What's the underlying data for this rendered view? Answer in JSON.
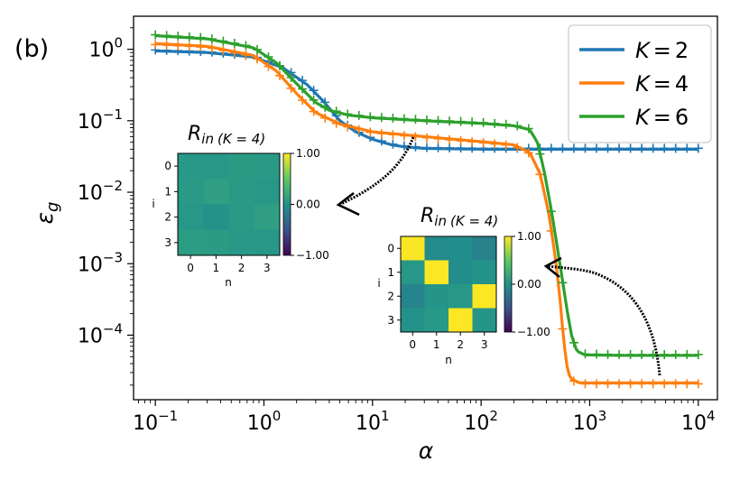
{
  "panel_label": "(b)",
  "chart_data": {
    "type": "line",
    "xscale": "log",
    "yscale": "log",
    "xlim": [
      0.063,
      15000
    ],
    "ylim": [
      1.25e-05,
      2.9
    ],
    "xlabel": "α",
    "ylabel": "ε_g",
    "ylabel_main": "ε",
    "ylabel_sub": "g",
    "x_ticks": [
      {
        "value": 0.1,
        "base": "10",
        "exp": "−1"
      },
      {
        "value": 1,
        "base": "10",
        "exp": "0"
      },
      {
        "value": 10,
        "base": "10",
        "exp": "1"
      },
      {
        "value": 100,
        "base": "10",
        "exp": "2"
      },
      {
        "value": 1000,
        "base": "10",
        "exp": "3"
      },
      {
        "value": 10000,
        "base": "10",
        "exp": "4"
      }
    ],
    "y_ticks": [
      {
        "value": 1,
        "base": "10",
        "exp": "0"
      },
      {
        "value": 0.1,
        "base": "10",
        "exp": "−1"
      },
      {
        "value": 0.01,
        "base": "10",
        "exp": "−2"
      },
      {
        "value": 0.001,
        "base": "10",
        "exp": "−3"
      },
      {
        "value": 0.0001,
        "base": "10",
        "exp": "−4"
      }
    ],
    "legend_position": "top-right",
    "series": [
      {
        "name": "K = 2",
        "label_main": "K",
        "label_value": "2",
        "color": "#1f77b4",
        "curve": [
          [
            0.1,
            0.95
          ],
          [
            0.3,
            0.9
          ],
          [
            0.8,
            0.78
          ],
          [
            1.5,
            0.55
          ],
          [
            2.5,
            0.32
          ],
          [
            3.5,
            0.19
          ],
          [
            5,
            0.1
          ],
          [
            7,
            0.07
          ],
          [
            10,
            0.055
          ],
          [
            15,
            0.046
          ],
          [
            20,
            0.043
          ],
          [
            30,
            0.041
          ],
          [
            100,
            0.04
          ],
          [
            1000,
            0.04
          ],
          [
            10000,
            0.04
          ]
        ]
      },
      {
        "name": "K = 4",
        "label_main": "K",
        "label_value": "4",
        "color": "#ff7f0e",
        "curve": [
          [
            0.1,
            1.2
          ],
          [
            0.3,
            1.1
          ],
          [
            0.8,
            0.82
          ],
          [
            1.3,
            0.5
          ],
          [
            2,
            0.24
          ],
          [
            3,
            0.13
          ],
          [
            5,
            0.09
          ],
          [
            10,
            0.07
          ],
          [
            30,
            0.06
          ],
          [
            100,
            0.051
          ],
          [
            200,
            0.046
          ],
          [
            280,
            0.036
          ],
          [
            350,
            0.018
          ],
          [
            420,
            0.005
          ],
          [
            480,
            0.0013
          ],
          [
            530,
            0.00035
          ],
          [
            570,
            0.0001
          ],
          [
            610,
            4e-05
          ],
          [
            660,
            2.5e-05
          ],
          [
            800,
            2.15e-05
          ],
          [
            10000,
            2.15e-05
          ]
        ]
      },
      {
        "name": "K = 6",
        "label_main": "K",
        "label_value": "6",
        "color": "#2ca02c",
        "curve": [
          [
            0.1,
            1.55
          ],
          [
            0.3,
            1.4
          ],
          [
            0.8,
            1.05
          ],
          [
            1.3,
            0.65
          ],
          [
            2,
            0.33
          ],
          [
            3,
            0.18
          ],
          [
            4,
            0.14
          ],
          [
            6,
            0.12
          ],
          [
            10,
            0.11
          ],
          [
            30,
            0.1
          ],
          [
            100,
            0.092
          ],
          [
            200,
            0.085
          ],
          [
            280,
            0.075
          ],
          [
            330,
            0.05
          ],
          [
            380,
            0.02
          ],
          [
            440,
            0.006
          ],
          [
            500,
            0.0018
          ],
          [
            560,
            0.0006
          ],
          [
            620,
            0.00022
          ],
          [
            680,
            0.0001
          ],
          [
            760,
            6e-05
          ],
          [
            900,
            5.3e-05
          ],
          [
            2000,
            5.2e-05
          ],
          [
            10000,
            5.2e-05
          ]
        ]
      }
    ],
    "insets": [
      {
        "title_main": "R",
        "title_sub": "in",
        "title_note": "(K = 4)",
        "xlabel": "n",
        "ylabel": "i",
        "ticks": [
          "0",
          "1",
          "2",
          "3"
        ],
        "colorbar_ticks": [
          {
            "value": 1.0,
            "label": "1.00"
          },
          {
            "value": 0.0,
            "label": "0.00"
          },
          {
            "value": -1.0,
            "label": "−1.00"
          }
        ],
        "matrix": [
          [
            0.06,
            0.05,
            0.09,
            0.07
          ],
          [
            0.07,
            0.12,
            0.08,
            0.05
          ],
          [
            0.05,
            0.02,
            0.07,
            0.12
          ],
          [
            0.1,
            0.09,
            0.06,
            0.05
          ]
        ]
      },
      {
        "title_main": "R",
        "title_sub": "in",
        "title_note": "(K = 4)",
        "xlabel": "n",
        "ylabel": "i",
        "ticks": [
          "0",
          "1",
          "2",
          "3"
        ],
        "colorbar_ticks": [
          {
            "value": 1.0,
            "label": "1.00"
          },
          {
            "value": 0.0,
            "label": "0.00"
          },
          {
            "value": -1.0,
            "label": "−1.00"
          }
        ],
        "matrix": [
          [
            0.99,
            -0.05,
            -0.02,
            -0.12
          ],
          [
            0.05,
            1.0,
            -0.03,
            0.02
          ],
          [
            -0.1,
            0.03,
            0.05,
            1.0
          ],
          [
            0.02,
            0.06,
            1.0,
            0.04
          ]
        ]
      }
    ]
  }
}
